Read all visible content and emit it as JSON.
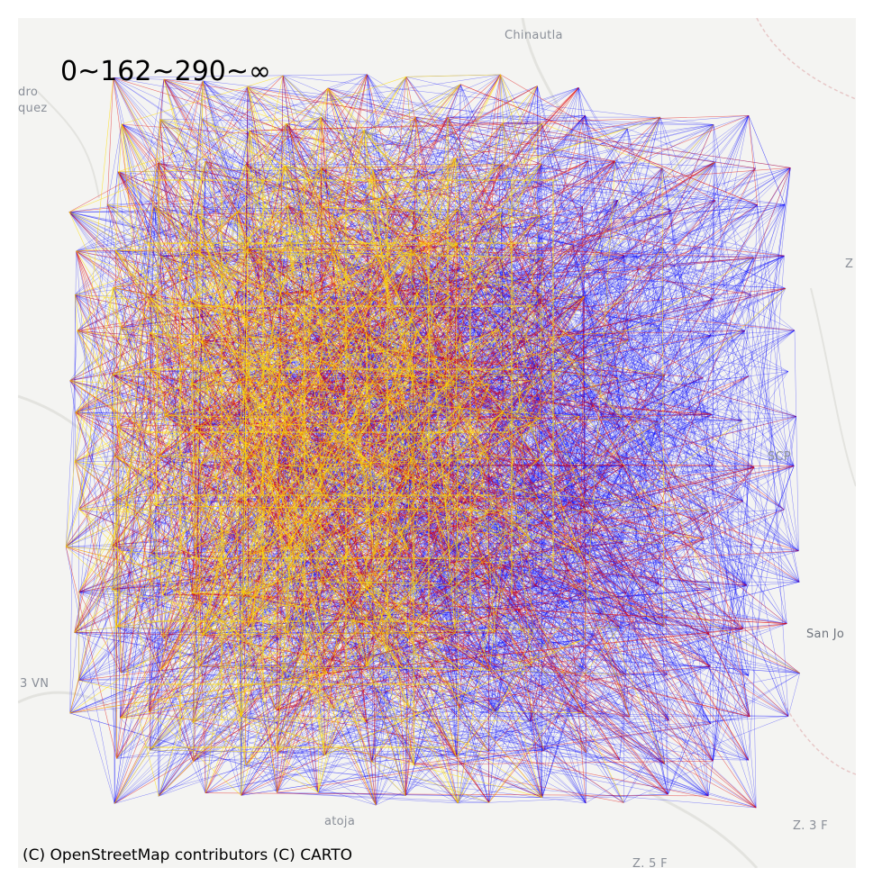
{
  "map": {
    "legend_title": "0~162~290~∞",
    "attribution": "(C) OpenStreetMap contributors (C) CARTO",
    "place_labels": {
      "top_center": "Chinautla",
      "top_left_1": "dro",
      "top_left_2": "quez",
      "right_mid": "SCP",
      "right_mid_2": "San Jo",
      "left_mid": "3 VN",
      "bottom_center": "atoja",
      "bottom_right": "Z. 3 F",
      "bottom_right_2": "Z. 5 F",
      "right_top": "Z"
    },
    "flow_classes": [
      {
        "range": "0~162",
        "color": "#0000ff"
      },
      {
        "range": "162~290",
        "color": "#e00000"
      },
      {
        "range": "290~∞",
        "color": "#ffdd00"
      }
    ],
    "basemap": "CARTO Positron"
  }
}
